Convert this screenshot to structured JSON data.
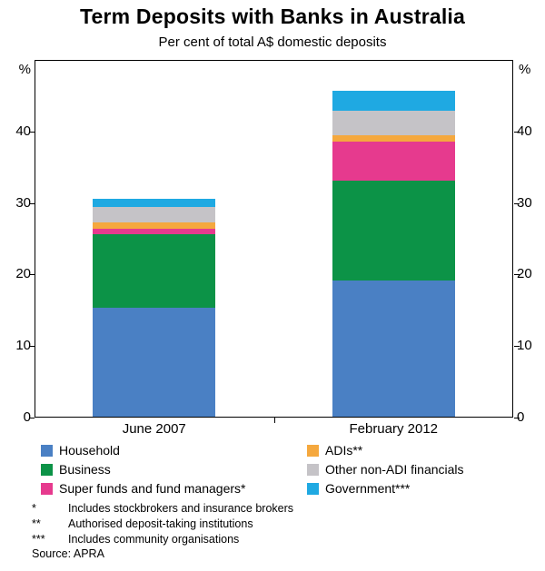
{
  "chart_data": {
    "type": "bar",
    "stacked": true,
    "title": "Term Deposits with Banks in Australia",
    "subtitle": "Per cent of total A$ domestic deposits",
    "y_unit": "%",
    "ylim": [
      0,
      50
    ],
    "yticks": [
      0,
      10,
      20,
      30,
      40
    ],
    "grid": false,
    "legend_position": "below",
    "categories": [
      "June 2007",
      "February 2012"
    ],
    "series": [
      {
        "name": "Household",
        "color": "#4a80c4",
        "values": [
          15.2,
          19.0
        ]
      },
      {
        "name": "Business",
        "color": "#0c9347",
        "values": [
          10.3,
          14.0
        ]
      },
      {
        "name": "Super funds and fund managers*",
        "color": "#e63a8e",
        "values": [
          0.8,
          5.5
        ]
      },
      {
        "name": "ADIs**",
        "color": "#f5a83e",
        "values": [
          0.9,
          0.8
        ]
      },
      {
        "name": "Other non-ADI financials",
        "color": "#c5c3c7",
        "values": [
          2.1,
          3.5
        ]
      },
      {
        "name": "Government***",
        "color": "#1fa9e2",
        "values": [
          1.2,
          2.7
        ]
      }
    ],
    "legend_columns": [
      [
        0,
        1,
        2
      ],
      [
        3,
        4,
        5
      ]
    ],
    "footnotes": [
      {
        "marker": "*",
        "text": "Includes stockbrokers and insurance brokers"
      },
      {
        "marker": "**",
        "text": "Authorised deposit-taking institutions"
      },
      {
        "marker": "***",
        "text": "Includes community organisations"
      }
    ],
    "source": "Source: APRA"
  }
}
